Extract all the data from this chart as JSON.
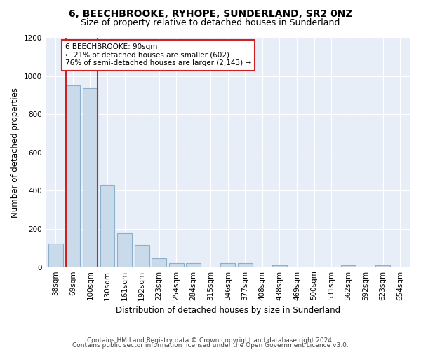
{
  "title": "6, BEECHBROOKE, RYHOPE, SUNDERLAND, SR2 0NZ",
  "subtitle": "Size of property relative to detached houses in Sunderland",
  "xlabel": "Distribution of detached houses by size in Sunderland",
  "ylabel": "Number of detached properties",
  "categories": [
    "38sqm",
    "69sqm",
    "100sqm",
    "130sqm",
    "161sqm",
    "192sqm",
    "223sqm",
    "254sqm",
    "284sqm",
    "315sqm",
    "346sqm",
    "377sqm",
    "408sqm",
    "438sqm",
    "469sqm",
    "500sqm",
    "531sqm",
    "562sqm",
    "592sqm",
    "623sqm",
    "654sqm"
  ],
  "values": [
    125,
    950,
    935,
    430,
    180,
    115,
    45,
    20,
    20,
    0,
    20,
    20,
    0,
    10,
    0,
    0,
    0,
    10,
    0,
    10,
    0
  ],
  "bar_color": "#c9daea",
  "bar_edge_color": "#8ab0cc",
  "highlight_bar_index": 1,
  "highlight_edge_color": "#cc2222",
  "annotation_box_text": "6 BEECHBROOKE: 90sqm\n← 21% of detached houses are smaller (602)\n76% of semi-detached houses are larger (2,143) →",
  "annotation_box_color": "#ffffff",
  "annotation_box_edge_color": "#cc2222",
  "ylim": [
    0,
    1200
  ],
  "yticks": [
    0,
    200,
    400,
    600,
    800,
    1000,
    1200
  ],
  "background_color": "#e8eef8",
  "footer_line1": "Contains HM Land Registry data © Crown copyright and database right 2024.",
  "footer_line2": "Contains public sector information licensed under the Open Government Licence v3.0.",
  "title_fontsize": 10,
  "subtitle_fontsize": 9,
  "xlabel_fontsize": 8.5,
  "ylabel_fontsize": 8.5,
  "annotation_fontsize": 7.5,
  "footer_fontsize": 6.5,
  "tick_fontsize": 7.5
}
